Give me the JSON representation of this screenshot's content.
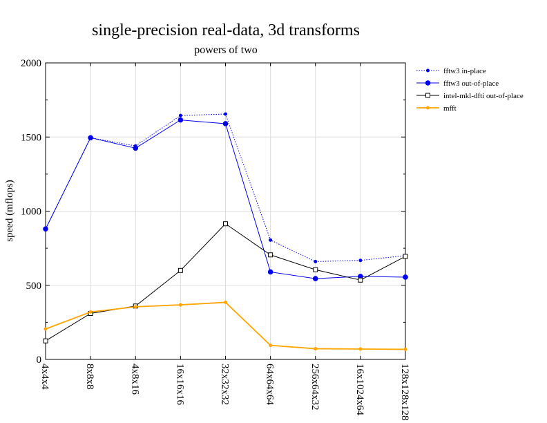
{
  "chart_data": {
    "type": "line",
    "title": "single-precision real-data, 3d transforms",
    "subtitle": "powers of two",
    "xlabel": "",
    "ylabel": "speed (mflops)",
    "ylim": [
      0,
      2000
    ],
    "yticks": [
      0,
      500,
      1000,
      1500,
      2000
    ],
    "grid": true,
    "legend": "right",
    "categories": [
      "4x4x4",
      "8x8x8",
      "4x8x16",
      "16x16x16",
      "32x32x32",
      "64x64x64",
      "256x64x32",
      "16x1024x64",
      "128x128x128"
    ],
    "series": [
      {
        "name": "fftw3 in-place",
        "color": "#0000ee",
        "style": "dotted",
        "marker": "small-dot",
        "values": [
          880,
          1495,
          1440,
          1645,
          1655,
          805,
          660,
          668,
          700
        ]
      },
      {
        "name": "fftw3 out-of-place",
        "color": "#0000ee",
        "style": "solid",
        "marker": "dot",
        "values": [
          880,
          1495,
          1425,
          1615,
          1590,
          590,
          545,
          560,
          555
        ]
      },
      {
        "name": "intel-mkl-dfti out-of-place",
        "color": "#000000",
        "style": "solid",
        "marker": "open-square",
        "values": [
          125,
          310,
          360,
          600,
          915,
          705,
          605,
          535,
          695
        ]
      },
      {
        "name": "mfft",
        "color": "#ffa500",
        "style": "solid",
        "marker": "small-dot",
        "values": [
          205,
          320,
          355,
          368,
          385,
          95,
          72,
          70,
          68
        ]
      }
    ]
  }
}
